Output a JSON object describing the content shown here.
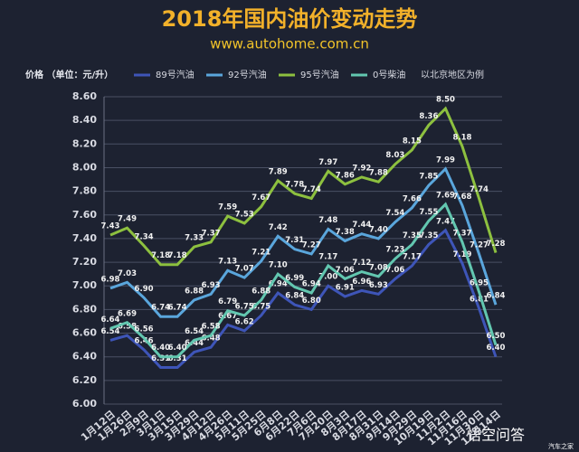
{
  "chart_data": {
    "type": "line",
    "title": "2018年国内油价变动走势",
    "subtitle": "www.autohome.com.cn",
    "y_label": "价格 （单位：元/升）",
    "note": "以北京地区为例",
    "watermark": "悟空问答",
    "source": "汽车之家",
    "categories": [
      "1月12日",
      "1月26日",
      "2月9日",
      "3月1日",
      "3月15日",
      "3月29日",
      "4月12日",
      "4月26日",
      "5月11日",
      "5月25日",
      "6月8日",
      "6月22日",
      "7月6日",
      "7月20日",
      "8月3日",
      "8月17日",
      "8月31日",
      "9月14日",
      "9月29日",
      "10月19日",
      "11月2日",
      "11月16日",
      "11月30日",
      "12月14日"
    ],
    "series": [
      {
        "name": "89号汽油",
        "color": "#3e55b8",
        "values": [
          6.54,
          6.58,
          6.46,
          6.31,
          6.31,
          6.44,
          6.48,
          6.67,
          6.62,
          6.75,
          6.94,
          6.84,
          6.8,
          7.0,
          6.91,
          6.96,
          6.93,
          7.06,
          7.17,
          7.35,
          7.47,
          7.19,
          6.81,
          6.4
        ],
        "value_labels": [
          "6.54",
          "6.58",
          "6.46",
          "6.31",
          "6.31",
          "6.44",
          "6.48",
          "6.67",
          "6.62",
          "6.75",
          "6.94",
          "6.84",
          "6.80",
          "7.00",
          "6.91",
          "6.96",
          "6.93",
          "7.06",
          "7.17",
          "7.35",
          "7.47",
          "7.19",
          "6.81",
          "6.40"
        ]
      },
      {
        "name": "92号汽油",
        "color": "#5aa6dc",
        "values": [
          6.98,
          7.03,
          6.9,
          6.74,
          6.74,
          6.88,
          6.93,
          7.13,
          7.07,
          7.21,
          7.42,
          7.31,
          7.27,
          7.48,
          7.38,
          7.44,
          7.4,
          7.54,
          7.66,
          7.85,
          7.99,
          7.68,
          7.27,
          6.84
        ],
        "value_labels": [
          "6.98",
          "7.03",
          "6.90",
          "6.74",
          "6.74",
          "6.88",
          "6.93",
          "7.13",
          "7.07",
          "7.21",
          "7.42",
          "7.31",
          "7.27",
          "7.48",
          "7.38",
          "7.44",
          "7.40",
          "7.54",
          "7.66",
          "7.85",
          "7.99",
          "7.68",
          "7.27",
          "6.84"
        ]
      },
      {
        "name": "95号汽油",
        "color": "#8dc03f",
        "values": [
          7.43,
          7.49,
          7.34,
          7.18,
          7.18,
          7.33,
          7.37,
          7.59,
          7.53,
          7.67,
          7.89,
          7.78,
          7.74,
          7.97,
          7.86,
          7.92,
          7.88,
          8.03,
          8.15,
          8.36,
          8.5,
          8.18,
          7.74,
          7.28
        ],
        "value_labels": [
          "7.43",
          "7.49",
          "7.34",
          "7.18",
          "7.18",
          "7.33",
          "7.37",
          "7.59",
          "7.53",
          "7.67",
          "7.89",
          "7.78",
          "7.74",
          "7.97",
          "7.86",
          "7.92",
          "7.88",
          "8.03",
          "8.15",
          "8.36",
          "8.50",
          "8.18",
          "7.74",
          "7.28"
        ]
      },
      {
        "name": "0号柴油",
        "color": "#62c7b0",
        "values": [
          6.64,
          6.69,
          6.56,
          6.4,
          6.4,
          6.54,
          6.58,
          6.79,
          6.75,
          6.88,
          7.1,
          6.99,
          6.94,
          7.17,
          7.06,
          7.12,
          7.08,
          7.23,
          7.35,
          7.55,
          7.69,
          7.37,
          6.95,
          6.5
        ],
        "value_labels": [
          "6.64",
          "6.69",
          "6.56",
          "6.40",
          "6.40",
          "6.54",
          "6.58",
          "6.79",
          "6.75",
          "6.88",
          "7.10",
          "6.99",
          "6.94",
          "7.17",
          "7.06",
          "7.12",
          "7.08",
          "7.23",
          "7.35",
          "7.55",
          "7.69",
          "7.37",
          "6.95",
          "6.50"
        ]
      }
    ],
    "ylim": [
      6.0,
      8.6
    ],
    "yticks": [
      {
        "value": 6.0,
        "label": "6.00"
      },
      {
        "value": 6.2,
        "label": "6.20"
      },
      {
        "value": 6.4,
        "label": "6.40"
      },
      {
        "value": 6.6,
        "label": "6.60"
      },
      {
        "value": 6.8,
        "label": "6.80"
      },
      {
        "value": 7.0,
        "label": "7.00"
      },
      {
        "value": 7.2,
        "label": "7.20"
      },
      {
        "value": 7.4,
        "label": "7.40"
      },
      {
        "value": 7.6,
        "label": "7.60"
      },
      {
        "value": 7.8,
        "label": "7.80"
      },
      {
        "value": 8.0,
        "label": "8.00"
      },
      {
        "value": 8.2,
        "label": "8.20"
      },
      {
        "value": 8.4,
        "label": "8.40"
      },
      {
        "value": 8.6,
        "label": "8.60"
      }
    ],
    "grid": true,
    "legend": "top"
  }
}
